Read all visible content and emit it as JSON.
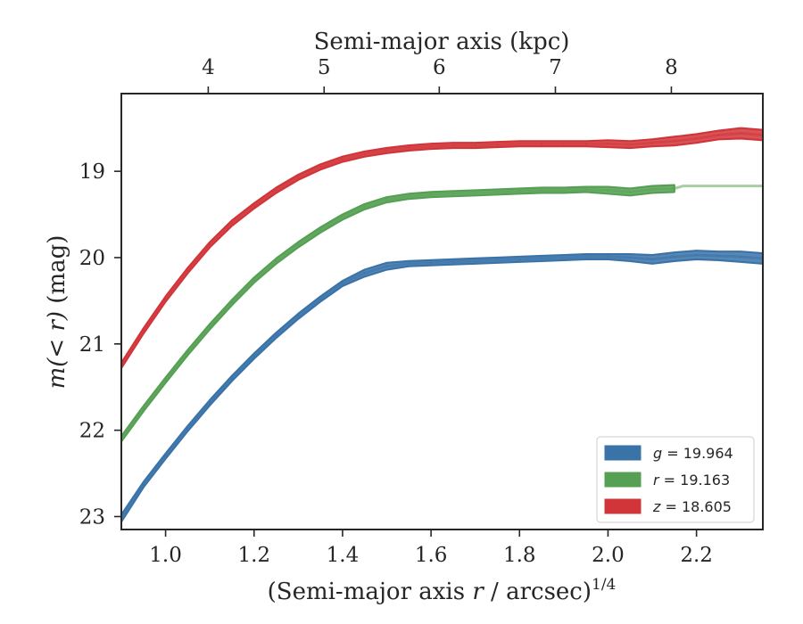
{
  "chart_data": {
    "type": "area",
    "xlabel_prefix": "(Semi-major axis ",
    "xlabel_var": "r",
    "xlabel_suffix": " / arcsec)",
    "xlabel_exp": "1/4",
    "ylabel_italic": "m(< r)",
    "ylabel_suffix": " (mag)",
    "top_xlabel": "Semi-major axis (kpc)",
    "xlim": [
      0.9,
      2.35
    ],
    "ylim": [
      23.15,
      18.1
    ],
    "y_inverted": true,
    "x_ticks": [
      "1.0",
      "1.2",
      "1.4",
      "1.6",
      "1.8",
      "2.0",
      "2.2"
    ],
    "x_tick_values": [
      1.0,
      1.2,
      1.4,
      1.6,
      1.8,
      2.0,
      2.2
    ],
    "y_ticks": [
      "19",
      "20",
      "21",
      "22",
      "23"
    ],
    "y_tick_values": [
      19,
      20,
      21,
      22,
      23
    ],
    "top_ticks": [
      "4",
      "5",
      "6",
      "7",
      "8"
    ],
    "top_tick_positions": [
      1.0964,
      1.3583,
      1.6186,
      1.8811,
      2.1432
    ],
    "legend_position": "lower-right",
    "series": [
      {
        "name": "g",
        "label": "g = 19.964",
        "color": "#3a73a8",
        "light_color": "#86a9cc",
        "x": [
          0.9,
          0.95,
          1.0,
          1.05,
          1.1,
          1.15,
          1.2,
          1.25,
          1.3,
          1.35,
          1.4,
          1.45,
          1.5,
          1.55,
          1.6,
          1.65,
          1.7,
          1.75,
          1.8,
          1.85,
          1.9,
          1.95,
          2.0,
          2.05,
          2.1,
          2.15,
          2.2,
          2.25,
          2.3,
          2.35
        ],
        "y": [
          23.02,
          22.63,
          22.3,
          21.98,
          21.68,
          21.4,
          21.14,
          20.9,
          20.68,
          20.48,
          20.3,
          20.18,
          20.1,
          20.07,
          20.06,
          20.05,
          20.04,
          20.03,
          20.02,
          20.01,
          20.0,
          19.99,
          19.99,
          20.0,
          20.02,
          19.99,
          19.97,
          19.98,
          19.99,
          20.01
        ],
        "half_width": [
          0.04,
          0.03,
          0.03,
          0.03,
          0.03,
          0.03,
          0.03,
          0.03,
          0.03,
          0.03,
          0.03,
          0.04,
          0.04,
          0.03,
          0.03,
          0.03,
          0.03,
          0.03,
          0.03,
          0.03,
          0.03,
          0.03,
          0.03,
          0.04,
          0.05,
          0.05,
          0.05,
          0.05,
          0.06,
          0.06
        ],
        "x_end": 2.35
      },
      {
        "name": "r",
        "label": "r = 19.163",
        "color": "#56a054",
        "light_color": "#a7cda5",
        "x": [
          0.9,
          0.95,
          1.0,
          1.05,
          1.1,
          1.15,
          1.2,
          1.25,
          1.3,
          1.35,
          1.4,
          1.45,
          1.5,
          1.55,
          1.6,
          1.65,
          1.7,
          1.75,
          1.8,
          1.85,
          1.9,
          1.95,
          2.0,
          2.05,
          2.1,
          2.15
        ],
        "y": [
          22.1,
          21.75,
          21.42,
          21.1,
          20.8,
          20.52,
          20.26,
          20.04,
          19.85,
          19.68,
          19.53,
          19.41,
          19.33,
          19.29,
          19.27,
          19.26,
          19.25,
          19.24,
          19.23,
          19.22,
          19.22,
          19.21,
          19.22,
          19.24,
          19.21,
          19.2
        ],
        "half_width": [
          0.03,
          0.03,
          0.03,
          0.03,
          0.03,
          0.03,
          0.03,
          0.03,
          0.03,
          0.03,
          0.03,
          0.03,
          0.03,
          0.03,
          0.03,
          0.03,
          0.03,
          0.03,
          0.03,
          0.03,
          0.03,
          0.03,
          0.04,
          0.04,
          0.04,
          0.04
        ],
        "x_end": 2.17,
        "extension_y": 19.17
      },
      {
        "name": "z",
        "label": "z = 18.605",
        "color": "#d1353a",
        "light_color": "#e68b8d",
        "x": [
          0.9,
          0.95,
          1.0,
          1.05,
          1.1,
          1.15,
          1.2,
          1.25,
          1.3,
          1.35,
          1.4,
          1.45,
          1.5,
          1.55,
          1.6,
          1.65,
          1.7,
          1.75,
          1.8,
          1.85,
          1.9,
          1.95,
          2.0,
          2.05,
          2.1,
          2.15,
          2.2,
          2.25,
          2.3,
          2.35
        ],
        "y": [
          21.25,
          20.85,
          20.48,
          20.15,
          19.85,
          19.6,
          19.4,
          19.22,
          19.07,
          18.95,
          18.86,
          18.8,
          18.76,
          18.73,
          18.71,
          18.7,
          18.7,
          18.69,
          18.68,
          18.68,
          18.68,
          18.68,
          18.68,
          18.69,
          18.67,
          18.65,
          18.62,
          18.58,
          18.56,
          18.58
        ],
        "half_width": [
          0.03,
          0.03,
          0.03,
          0.03,
          0.03,
          0.03,
          0.03,
          0.03,
          0.03,
          0.03,
          0.03,
          0.03,
          0.03,
          0.03,
          0.03,
          0.03,
          0.03,
          0.03,
          0.03,
          0.03,
          0.03,
          0.03,
          0.04,
          0.04,
          0.04,
          0.05,
          0.05,
          0.05,
          0.06,
          0.06
        ],
        "x_end": 2.35
      }
    ]
  }
}
